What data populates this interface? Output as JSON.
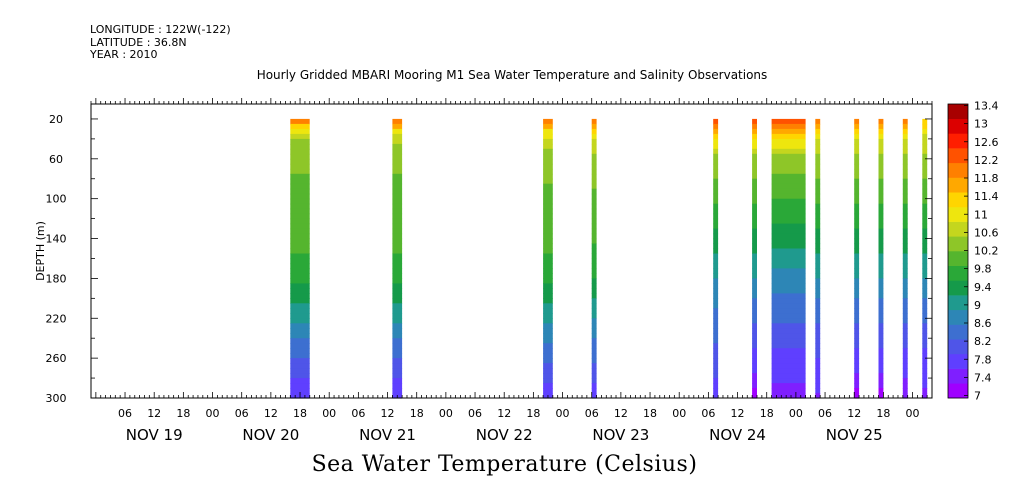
{
  "header": {
    "longitude": "LONGITUDE : 122W(-122)",
    "latitude": "LATITUDE : 36.8N",
    "year": "YEAR : 2010"
  },
  "chart_data": {
    "type": "heatmap",
    "title": "Hourly Gridded MBARI Mooring M1 Sea Water Temperature and Salinity Observations",
    "ylabel": "DEPTH (m)",
    "xlabel": "",
    "bottom_label": "Sea Water Temperature (Celsius)",
    "x_range": [
      "2010-11-18T23:00",
      "2010-11-26T04:00"
    ],
    "x_hour_ticks": [
      "06",
      "12",
      "18",
      "00",
      "06",
      "12",
      "18",
      "00",
      "06",
      "12",
      "18",
      "00",
      "06",
      "12",
      "18",
      "00",
      "06",
      "12",
      "18",
      "00",
      "06",
      "12",
      "18",
      "00",
      "06",
      "12",
      "18",
      "00"
    ],
    "x_day_labels": [
      "NOV 19",
      "NOV 20",
      "NOV 21",
      "NOV 22",
      "NOV 23",
      "NOV 24",
      "NOV 25"
    ],
    "y_ticks": [
      20,
      60,
      100,
      140,
      180,
      220,
      260,
      300
    ],
    "ylim": [
      300,
      5
    ],
    "colorbar": {
      "levels": [
        7,
        7.4,
        7.8,
        8.2,
        8.6,
        9,
        9.4,
        9.8,
        10.2,
        10.6,
        11,
        11.4,
        11.8,
        12.2,
        12.6,
        13,
        13.4
      ],
      "labels": [
        "13.4",
        "13",
        "12.6",
        "12.2",
        "11.8",
        "11.4",
        "11",
        "10.6",
        "10.2",
        "9.8",
        "9.4",
        "9",
        "8.6",
        "8.2",
        "7.8",
        "7.4",
        "7"
      ],
      "colors": [
        "#9f00ff",
        "#7f1fff",
        "#5f3fff",
        "#4f55e8",
        "#3d6fd0",
        "#2d86b6",
        "#1f9a8e",
        "#159a4a",
        "#2aa838",
        "#55b52e",
        "#8ec628",
        "#c4d61e",
        "#eee60e",
        "#ffd500",
        "#ffa800",
        "#ff8000",
        "#ff5200",
        "#ff1e00",
        "#dc0000",
        "#a80000"
      ]
    },
    "observation_blocks": [
      {
        "start": "2010-11-20T16:00",
        "end": "2010-11-20T20:00",
        "depth_max": 300,
        "profile": [
          [
            20,
            12.4
          ],
          [
            30,
            11.4
          ],
          [
            40,
            10.6
          ],
          [
            60,
            10.4
          ],
          [
            100,
            10.3
          ],
          [
            140,
            10.2
          ],
          [
            180,
            9.8
          ],
          [
            220,
            9.1
          ],
          [
            250,
            8.5
          ],
          [
            280,
            8.0
          ],
          [
            300,
            7.8
          ]
        ]
      },
      {
        "start": "2010-11-21T13:00",
        "end": "2010-11-21T15:00",
        "depth_max": 300,
        "profile": [
          [
            20,
            12.4
          ],
          [
            30,
            11.5
          ],
          [
            40,
            10.8
          ],
          [
            60,
            10.4
          ],
          [
            100,
            10.3
          ],
          [
            140,
            10.2
          ],
          [
            180,
            9.8
          ],
          [
            220,
            9.1
          ],
          [
            250,
            8.5
          ],
          [
            280,
            8.0
          ],
          [
            300,
            7.8
          ]
        ]
      },
      {
        "start": "2010-11-22T20:00",
        "end": "2010-11-22T22:00",
        "depth_max": 300,
        "profile": [
          [
            20,
            12.4
          ],
          [
            30,
            11.5
          ],
          [
            40,
            10.9
          ],
          [
            60,
            10.5
          ],
          [
            100,
            10.3
          ],
          [
            140,
            10.2
          ],
          [
            180,
            9.8
          ],
          [
            220,
            9.1
          ],
          [
            250,
            8.6
          ],
          [
            280,
            8.1
          ],
          [
            300,
            7.8
          ]
        ]
      },
      {
        "start": "2010-11-23T06:00",
        "end": "2010-11-23T07:00",
        "depth_max": 300,
        "profile": [
          [
            20,
            12.4
          ],
          [
            30,
            11.8
          ],
          [
            40,
            11.1
          ],
          [
            60,
            10.6
          ],
          [
            100,
            10.3
          ],
          [
            140,
            10.1
          ],
          [
            180,
            9.7
          ],
          [
            220,
            9.0
          ],
          [
            260,
            8.4
          ],
          [
            300,
            7.8
          ]
        ]
      },
      {
        "start": "2010-11-24T07:00",
        "end": "2010-11-24T08:00",
        "depth_max": 300,
        "profile": [
          [
            20,
            12.6
          ],
          [
            30,
            12.0
          ],
          [
            40,
            11.4
          ],
          [
            60,
            10.6
          ],
          [
            100,
            10.1
          ],
          [
            140,
            9.6
          ],
          [
            180,
            9.0
          ],
          [
            220,
            8.6
          ],
          [
            260,
            8.2
          ],
          [
            300,
            7.8
          ]
        ]
      },
      {
        "start": "2010-11-24T15:00",
        "end": "2010-11-24T16:00",
        "depth_max": 300,
        "profile": [
          [
            20,
            12.6
          ],
          [
            30,
            12.0
          ],
          [
            40,
            11.4
          ],
          [
            60,
            10.6
          ],
          [
            100,
            10.1
          ],
          [
            140,
            9.6
          ],
          [
            180,
            9.0
          ],
          [
            220,
            8.4
          ],
          [
            260,
            7.9
          ],
          [
            300,
            7.2
          ]
        ]
      },
      {
        "start": "2010-11-24T19:00",
        "end": "2010-11-25T02:00",
        "depth_max": 300,
        "profile": [
          [
            20,
            12.7
          ],
          [
            30,
            12.2
          ],
          [
            40,
            11.4
          ],
          [
            60,
            10.6
          ],
          [
            100,
            10.0
          ],
          [
            140,
            9.5
          ],
          [
            180,
            8.9
          ],
          [
            220,
            8.4
          ],
          [
            260,
            7.9
          ],
          [
            300,
            7.5
          ]
        ]
      },
      {
        "start": "2010-11-25T04:00",
        "end": "2010-11-25T05:00",
        "depth_max": 300,
        "profile": [
          [
            20,
            12.4
          ],
          [
            30,
            11.8
          ],
          [
            40,
            11.0
          ],
          [
            60,
            10.6
          ],
          [
            100,
            10.1
          ],
          [
            140,
            9.6
          ],
          [
            180,
            9.0
          ],
          [
            220,
            8.4
          ],
          [
            260,
            8.0
          ],
          [
            300,
            7.6
          ]
        ]
      },
      {
        "start": "2010-11-25T12:00",
        "end": "2010-11-25T13:00",
        "depth_max": 300,
        "profile": [
          [
            20,
            12.4
          ],
          [
            30,
            11.8
          ],
          [
            40,
            11.0
          ],
          [
            60,
            10.6
          ],
          [
            100,
            10.1
          ],
          [
            140,
            9.6
          ],
          [
            180,
            9.0
          ],
          [
            220,
            8.4
          ],
          [
            260,
            7.9
          ],
          [
            300,
            7.2
          ]
        ]
      },
      {
        "start": "2010-11-25T17:00",
        "end": "2010-11-25T18:00",
        "depth_max": 300,
        "profile": [
          [
            20,
            12.3
          ],
          [
            30,
            11.6
          ],
          [
            40,
            11.0
          ],
          [
            60,
            10.6
          ],
          [
            100,
            10.1
          ],
          [
            140,
            9.6
          ],
          [
            180,
            9.0
          ],
          [
            220,
            8.4
          ],
          [
            260,
            7.9
          ],
          [
            300,
            7.2
          ]
        ]
      },
      {
        "start": "2010-11-25T22:00",
        "end": "2010-11-25T23:00",
        "depth_max": 300,
        "profile": [
          [
            20,
            12.3
          ],
          [
            30,
            11.6
          ],
          [
            40,
            11.0
          ],
          [
            60,
            10.6
          ],
          [
            100,
            10.1
          ],
          [
            140,
            9.6
          ],
          [
            180,
            9.0
          ],
          [
            220,
            8.4
          ],
          [
            260,
            7.9
          ],
          [
            300,
            7.4
          ]
        ]
      },
      {
        "start": "2010-11-26T02:00",
        "end": "2010-11-26T03:00",
        "depth_max": 300,
        "profile": [
          [
            20,
            11.8
          ],
          [
            30,
            11.3
          ],
          [
            40,
            10.9
          ],
          [
            60,
            10.6
          ],
          [
            100,
            10.1
          ],
          [
            140,
            9.6
          ],
          [
            180,
            9.0
          ],
          [
            220,
            8.4
          ],
          [
            260,
            7.9
          ],
          [
            300,
            7.6
          ]
        ]
      }
    ]
  }
}
